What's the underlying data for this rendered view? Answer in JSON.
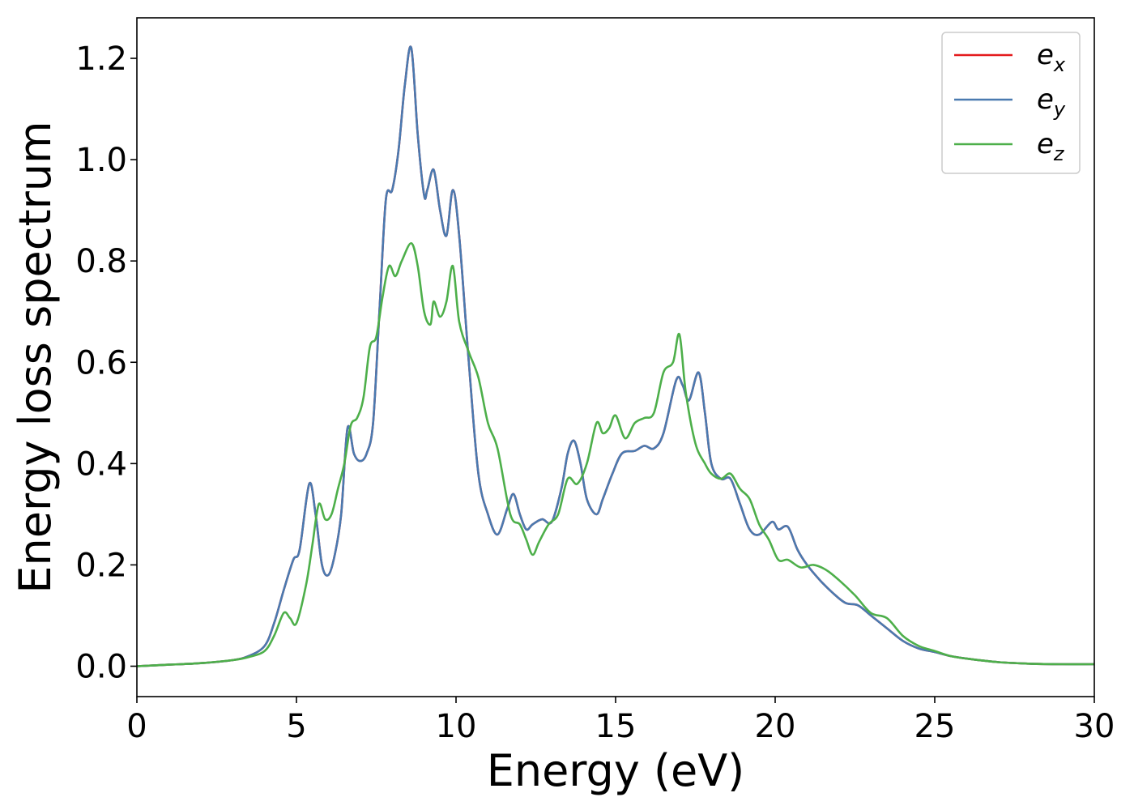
{
  "chart_data": {
    "type": "line",
    "xlabel": "Energy (eV)",
    "ylabel": "Energy loss spectrum",
    "xlim": [
      0,
      30
    ],
    "ylim": [
      -0.06,
      1.28
    ],
    "x_ticks": [
      0,
      5,
      10,
      15,
      20,
      25,
      30
    ],
    "x_tick_labels": [
      "0",
      "5",
      "10",
      "15",
      "20",
      "25",
      "30"
    ],
    "y_ticks": [
      0.0,
      0.2,
      0.4,
      0.6,
      0.8,
      1.0,
      1.2
    ],
    "y_tick_labels": [
      "0.0",
      "0.2",
      "0.4",
      "0.6",
      "0.8",
      "1.0",
      "1.2"
    ],
    "grid": false,
    "legend_position": "top-right",
    "series": [
      {
        "name": "e",
        "subscript": "x",
        "color": "#e41a1c",
        "x": [
          0,
          1,
          2,
          3,
          3.5,
          4,
          4.3,
          4.6,
          4.9,
          5.1,
          5.4,
          5.6,
          5.8,
          6.0,
          6.2,
          6.4,
          6.6,
          6.8,
          7.0,
          7.2,
          7.4,
          7.6,
          7.8,
          8.0,
          8.2,
          8.4,
          8.6,
          8.8,
          9.0,
          9.1,
          9.3,
          9.5,
          9.7,
          9.9,
          10.1,
          10.4,
          10.7,
          11.0,
          11.3,
          11.6,
          11.8,
          12.0,
          12.2,
          12.4,
          12.7,
          13.0,
          13.3,
          13.5,
          13.7,
          13.9,
          14.1,
          14.4,
          14.6,
          14.9,
          15.2,
          15.6,
          15.9,
          16.2,
          16.5,
          16.9,
          17.1,
          17.3,
          17.6,
          17.8,
          18.0,
          18.3,
          18.6,
          18.9,
          19.2,
          19.5,
          19.9,
          20.1,
          20.4,
          20.7,
          21.0,
          21.4,
          21.8,
          22.2,
          22.6,
          23.0,
          23.5,
          24.0,
          24.5,
          25.0,
          25.5,
          26.0,
          27.0,
          28.0,
          29.0,
          30.0
        ],
        "y": [
          0.0,
          0.003,
          0.006,
          0.012,
          0.02,
          0.04,
          0.085,
          0.15,
          0.21,
          0.23,
          0.36,
          0.3,
          0.2,
          0.18,
          0.22,
          0.3,
          0.47,
          0.42,
          0.405,
          0.42,
          0.48,
          0.7,
          0.92,
          0.94,
          1.02,
          1.15,
          1.22,
          1.05,
          0.93,
          0.94,
          0.98,
          0.9,
          0.85,
          0.94,
          0.85,
          0.6,
          0.38,
          0.3,
          0.26,
          0.31,
          0.34,
          0.3,
          0.27,
          0.28,
          0.29,
          0.285,
          0.35,
          0.42,
          0.445,
          0.4,
          0.33,
          0.3,
          0.33,
          0.38,
          0.42,
          0.425,
          0.435,
          0.43,
          0.46,
          0.565,
          0.555,
          0.525,
          0.58,
          0.5,
          0.4,
          0.37,
          0.37,
          0.32,
          0.27,
          0.26,
          0.285,
          0.27,
          0.275,
          0.23,
          0.2,
          0.17,
          0.145,
          0.125,
          0.12,
          0.1,
          0.075,
          0.05,
          0.035,
          0.028,
          0.02,
          0.015,
          0.008,
          0.005,
          0.004,
          0.004
        ]
      },
      {
        "name": "e",
        "subscript": "y",
        "color": "#4a7ab0",
        "x": [
          0,
          1,
          2,
          3,
          3.5,
          4,
          4.3,
          4.6,
          4.9,
          5.1,
          5.4,
          5.6,
          5.8,
          6.0,
          6.2,
          6.4,
          6.6,
          6.8,
          7.0,
          7.2,
          7.4,
          7.6,
          7.8,
          8.0,
          8.2,
          8.4,
          8.6,
          8.8,
          9.0,
          9.1,
          9.3,
          9.5,
          9.7,
          9.9,
          10.1,
          10.4,
          10.7,
          11.0,
          11.3,
          11.6,
          11.8,
          12.0,
          12.2,
          12.4,
          12.7,
          13.0,
          13.3,
          13.5,
          13.7,
          13.9,
          14.1,
          14.4,
          14.6,
          14.9,
          15.2,
          15.6,
          15.9,
          16.2,
          16.5,
          16.9,
          17.1,
          17.3,
          17.6,
          17.8,
          18.0,
          18.3,
          18.6,
          18.9,
          19.2,
          19.5,
          19.9,
          20.1,
          20.4,
          20.7,
          21.0,
          21.4,
          21.8,
          22.2,
          22.6,
          23.0,
          23.5,
          24.0,
          24.5,
          25.0,
          25.5,
          26.0,
          27.0,
          28.0,
          29.0,
          30.0
        ],
        "y": [
          0.0,
          0.003,
          0.006,
          0.012,
          0.02,
          0.04,
          0.085,
          0.15,
          0.21,
          0.23,
          0.36,
          0.3,
          0.2,
          0.18,
          0.22,
          0.3,
          0.47,
          0.42,
          0.405,
          0.42,
          0.48,
          0.7,
          0.92,
          0.94,
          1.02,
          1.15,
          1.22,
          1.05,
          0.93,
          0.94,
          0.98,
          0.9,
          0.85,
          0.94,
          0.85,
          0.6,
          0.38,
          0.3,
          0.26,
          0.31,
          0.34,
          0.3,
          0.27,
          0.28,
          0.29,
          0.285,
          0.35,
          0.42,
          0.445,
          0.4,
          0.33,
          0.3,
          0.33,
          0.38,
          0.42,
          0.425,
          0.435,
          0.43,
          0.46,
          0.565,
          0.555,
          0.525,
          0.58,
          0.5,
          0.4,
          0.37,
          0.37,
          0.32,
          0.27,
          0.26,
          0.285,
          0.27,
          0.275,
          0.23,
          0.2,
          0.17,
          0.145,
          0.125,
          0.12,
          0.1,
          0.075,
          0.05,
          0.035,
          0.028,
          0.02,
          0.015,
          0.008,
          0.005,
          0.004,
          0.004
        ]
      },
      {
        "name": "e",
        "subscript": "z",
        "color": "#4daf4a",
        "x": [
          0,
          1,
          2,
          3,
          3.5,
          4,
          4.3,
          4.6,
          4.8,
          5.0,
          5.3,
          5.5,
          5.7,
          5.9,
          6.1,
          6.3,
          6.5,
          6.7,
          6.9,
          7.1,
          7.3,
          7.5,
          7.7,
          7.9,
          8.1,
          8.3,
          8.6,
          8.8,
          9.0,
          9.2,
          9.3,
          9.5,
          9.7,
          9.9,
          10.1,
          10.4,
          10.7,
          11.0,
          11.3,
          11.7,
          12.0,
          12.2,
          12.4,
          12.6,
          12.9,
          13.2,
          13.5,
          13.8,
          14.1,
          14.4,
          14.6,
          14.8,
          15.0,
          15.3,
          15.6,
          15.9,
          16.2,
          16.5,
          16.8,
          17.0,
          17.2,
          17.5,
          17.8,
          18.0,
          18.3,
          18.6,
          18.9,
          19.2,
          19.5,
          19.8,
          20.1,
          20.4,
          20.8,
          21.2,
          21.6,
          22.0,
          22.5,
          23.0,
          23.5,
          24.0,
          24.5,
          25.0,
          25.5,
          26.0,
          27.0,
          28.0,
          29.0,
          30.0
        ],
        "y": [
          0.0,
          0.003,
          0.006,
          0.012,
          0.018,
          0.03,
          0.06,
          0.105,
          0.095,
          0.085,
          0.16,
          0.24,
          0.32,
          0.29,
          0.3,
          0.35,
          0.4,
          0.475,
          0.49,
          0.53,
          0.63,
          0.65,
          0.73,
          0.79,
          0.77,
          0.8,
          0.835,
          0.79,
          0.7,
          0.675,
          0.72,
          0.69,
          0.72,
          0.79,
          0.68,
          0.62,
          0.57,
          0.48,
          0.43,
          0.3,
          0.28,
          0.25,
          0.22,
          0.245,
          0.28,
          0.3,
          0.37,
          0.36,
          0.4,
          0.48,
          0.46,
          0.47,
          0.495,
          0.45,
          0.48,
          0.49,
          0.5,
          0.58,
          0.6,
          0.655,
          0.54,
          0.44,
          0.4,
          0.38,
          0.37,
          0.38,
          0.35,
          0.33,
          0.28,
          0.25,
          0.21,
          0.21,
          0.195,
          0.2,
          0.19,
          0.17,
          0.14,
          0.105,
          0.095,
          0.06,
          0.04,
          0.03,
          0.02,
          0.015,
          0.008,
          0.005,
          0.004,
          0.004
        ]
      }
    ]
  }
}
